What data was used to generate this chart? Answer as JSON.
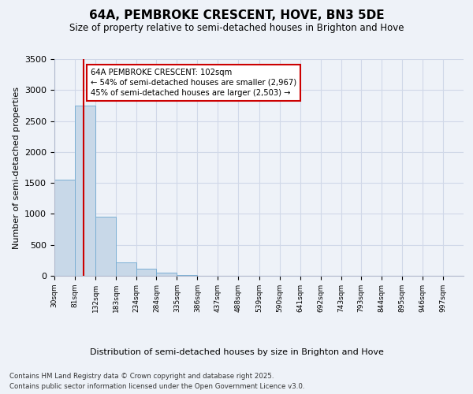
{
  "title": "64A, PEMBROKE CRESCENT, HOVE, BN3 5DE",
  "subtitle": "Size of property relative to semi-detached houses in Brighton and Hove",
  "xlabel": "Distribution of semi-detached houses by size in Brighton and Hove",
  "ylabel": "Number of semi-detached properties",
  "bin_edges": [
    30,
    81,
    132,
    183,
    234,
    284,
    335,
    386,
    437,
    488,
    539,
    590,
    641,
    692,
    743,
    793,
    844,
    895,
    946,
    997,
    1048
  ],
  "bar_heights": [
    1550,
    2750,
    950,
    220,
    110,
    55,
    15,
    0,
    0,
    0,
    0,
    0,
    0,
    0,
    0,
    0,
    0,
    0,
    0,
    0
  ],
  "bar_color": "#c8d8e8",
  "bar_edge_color": "#7bafd4",
  "property_size": 102,
  "property_label": "64A PEMBROKE CRESCENT: 102sqm",
  "pct_smaller": 54,
  "pct_smaller_count": 2967,
  "pct_larger": 45,
  "pct_larger_count": 2503,
  "vline_color": "#cc0000",
  "annotation_box_edge": "#cc0000",
  "ylim": [
    0,
    3500
  ],
  "yticks": [
    0,
    500,
    1000,
    1500,
    2000,
    2500,
    3000,
    3500
  ],
  "grid_color": "#d0d8e8",
  "background_color": "#eef2f8",
  "footer_line1": "Contains HM Land Registry data © Crown copyright and database right 2025.",
  "footer_line2": "Contains public sector information licensed under the Open Government Licence v3.0."
}
